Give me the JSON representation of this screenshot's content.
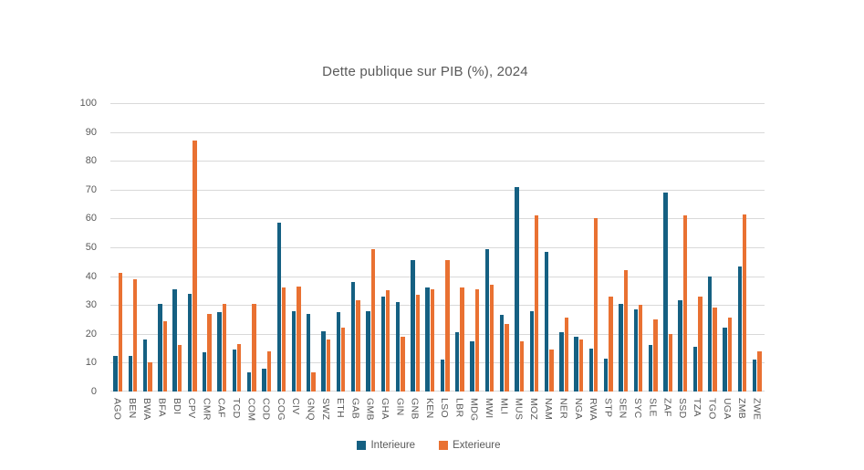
{
  "chart_data": {
    "type": "bar",
    "title": "Dette publique sur PIB (%), 2024",
    "xlabel": "",
    "ylabel": "",
    "ylim": [
      0,
      100
    ],
    "yticks": [
      0,
      10,
      20,
      30,
      40,
      50,
      60,
      70,
      80,
      90,
      100
    ],
    "grid": true,
    "legend_position": "bottom",
    "categories": [
      "AGO",
      "BEN",
      "BWA",
      "BFA",
      "BDI",
      "CPV",
      "CMR",
      "CAF",
      "TCD",
      "COM",
      "COD",
      "COG",
      "CIV",
      "GNQ",
      "SWZ",
      "ETH",
      "GAB",
      "GMB",
      "GHA",
      "GIN",
      "GNB",
      "KEN",
      "LSO",
      "LBR",
      "MDG",
      "MWI",
      "MLI",
      "MUS",
      "MOZ",
      "NAM",
      "NER",
      "NGA",
      "RWA",
      "STP",
      "SEN",
      "SYC",
      "SLE",
      "ZAF",
      "SSD",
      "TZA",
      "TGO",
      "UGA",
      "ZMB",
      "ZWE"
    ],
    "series": [
      {
        "name": "Interieure",
        "color": "#156082",
        "values": [
          12.5,
          12.5,
          18,
          30.5,
          35.5,
          34,
          13.5,
          27.5,
          14.5,
          6.5,
          8,
          58.5,
          28,
          27,
          21,
          27.5,
          38,
          28,
          33,
          31,
          45.5,
          36,
          11,
          20.5,
          17.5,
          49.5,
          26.5,
          71,
          28,
          48.5,
          20.5,
          19,
          15,
          11.5,
          30.5,
          28.5,
          16,
          69,
          31.5,
          15.5,
          40,
          22,
          43.5,
          11
        ]
      },
      {
        "name": "Exterieure",
        "color": "#E97132",
        "values": [
          41,
          39,
          10,
          24.5,
          16,
          87,
          27,
          30.5,
          16.5,
          30.5,
          14,
          36,
          36.5,
          6.5,
          18,
          22,
          31.5,
          49.5,
          35,
          19,
          33.5,
          35.5,
          45.5,
          36,
          35.5,
          37,
          23.5,
          17.5,
          61,
          14.5,
          25.5,
          18,
          60,
          33,
          42,
          30,
          25,
          20,
          61,
          33,
          29,
          25.5,
          61.5,
          14
        ]
      }
    ]
  },
  "colors": {
    "grid": "#D9D9D9",
    "axis_text": "#595959",
    "title_text": "#595959",
    "background": "#FFFFFF"
  }
}
